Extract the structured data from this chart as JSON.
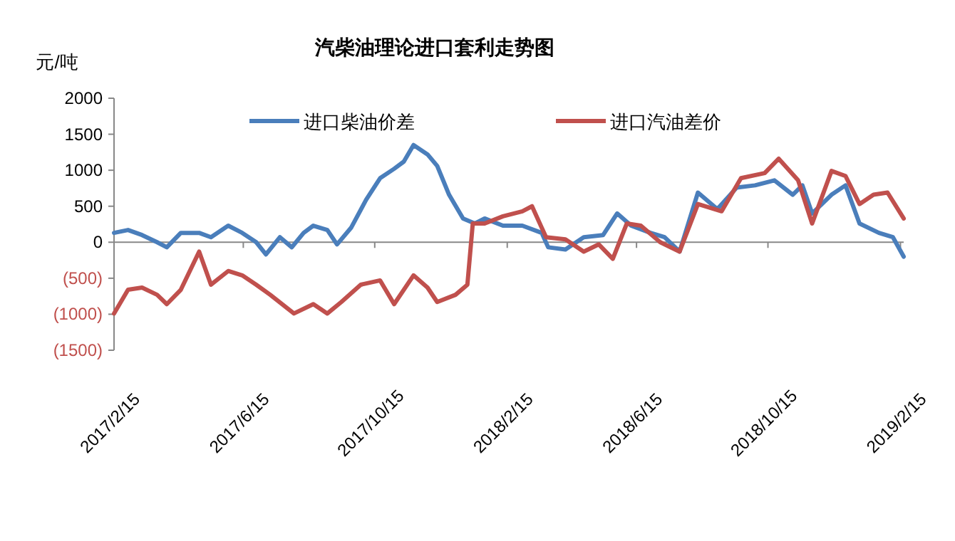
{
  "chart_data": {
    "type": "line",
    "title": "汽柴油理论进口套利走势图",
    "ylabel": "元/吨",
    "xlim": [
      "2017-02-15",
      "2019-02-18"
    ],
    "xticks": [
      {
        "value": "2017-02-15",
        "label": "2017/2/15"
      },
      {
        "value": "2017-06-15",
        "label": "2017/6/15"
      },
      {
        "value": "2017-10-15",
        "label": "2017/10/15"
      },
      {
        "value": "2018-02-15",
        "label": "2018/2/15"
      },
      {
        "value": "2018-06-15",
        "label": "2018/6/15"
      },
      {
        "value": "2018-10-15",
        "label": "2018/10/15"
      },
      {
        "value": "2019-02-15",
        "label": "2019/2/15"
      }
    ],
    "ylim": [
      -1500,
      2000
    ],
    "yticks": [
      {
        "value": -1500,
        "label": "(1500)"
      },
      {
        "value": -1000,
        "label": "(1000)"
      },
      {
        "value": -500,
        "label": "(500)"
      },
      0,
      500,
      1000,
      1500,
      2000
    ],
    "legend": "top",
    "marker": "none",
    "line_style": "solid",
    "series": [
      {
        "name": "进口柴油价差",
        "color": "#4a7ebb",
        "x": [
          "2017-02-15",
          "2017-02-28",
          "2017-03-13",
          "2017-03-27",
          "2017-04-05",
          "2017-04-18",
          "2017-05-05",
          "2017-05-16",
          "2017-06-01",
          "2017-06-14",
          "2017-06-27",
          "2017-07-06",
          "2017-07-19",
          "2017-07-30",
          "2017-08-10",
          "2017-08-19",
          "2017-09-01",
          "2017-09-10",
          "2017-09-23",
          "2017-10-07",
          "2017-10-20",
          "2017-11-02",
          "2017-11-11",
          "2017-11-20",
          "2017-12-03",
          "2017-12-12",
          "2017-12-23",
          "2018-01-05",
          "2018-01-16",
          "2018-01-25",
          "2018-02-11",
          "2018-03-01",
          "2018-03-19",
          "2018-03-25",
          "2018-04-10",
          "2018-04-27",
          "2018-05-15",
          "2018-05-28",
          "2018-06-10",
          "2018-06-28",
          "2018-07-11",
          "2018-07-25",
          "2018-08-11",
          "2018-08-29",
          "2018-09-16",
          "2018-10-03",
          "2018-10-21",
          "2018-11-07",
          "2018-11-16",
          "2018-11-25",
          "2018-12-13",
          "2018-12-26",
          "2019-01-08",
          "2019-01-26",
          "2019-02-08",
          "2019-02-18"
        ],
        "values": [
          130,
          170,
          100,
          0,
          -70,
          130,
          130,
          70,
          230,
          130,
          0,
          -170,
          70,
          -70,
          130,
          230,
          170,
          -30,
          200,
          590,
          890,
          1020,
          1120,
          1350,
          1220,
          1060,
          660,
          330,
          260,
          330,
          230,
          230,
          130,
          -70,
          -100,
          70,
          100,
          400,
          230,
          130,
          70,
          -130,
          690,
          460,
          760,
          790,
          860,
          660,
          790,
          400,
          660,
          790,
          260,
          130,
          70,
          -200
        ]
      },
      {
        "name": "进口汽油差价",
        "color": "#c0504d",
        "x": [
          "2017-02-15",
          "2017-02-28",
          "2017-03-13",
          "2017-03-27",
          "2017-04-05",
          "2017-04-18",
          "2017-05-05",
          "2017-05-16",
          "2017-06-01",
          "2017-06-14",
          "2017-06-27",
          "2017-07-10",
          "2017-08-01",
          "2017-08-19",
          "2017-09-01",
          "2017-09-14",
          "2017-10-02",
          "2017-10-20",
          "2017-11-02",
          "2017-11-20",
          "2017-12-03",
          "2017-12-12",
          "2017-12-29",
          "2018-01-09",
          "2018-01-14",
          "2018-01-20",
          "2018-01-25",
          "2018-02-11",
          "2018-03-01",
          "2018-03-10",
          "2018-03-23",
          "2018-04-10",
          "2018-04-27",
          "2018-05-11",
          "2018-05-24",
          "2018-06-06",
          "2018-06-19",
          "2018-07-07",
          "2018-07-25",
          "2018-08-11",
          "2018-09-02",
          "2018-09-20",
          "2018-10-12",
          "2018-10-25",
          "2018-11-12",
          "2018-11-25",
          "2018-12-13",
          "2018-12-26",
          "2019-01-08",
          "2019-01-21",
          "2019-02-03",
          "2019-02-18"
        ],
        "values": [
          -990,
          -660,
          -630,
          -730,
          -860,
          -660,
          -130,
          -590,
          -400,
          -460,
          -590,
          -730,
          -990,
          -860,
          -990,
          -830,
          -590,
          -530,
          -860,
          -460,
          -630,
          -830,
          -730,
          -590,
          260,
          260,
          260,
          360,
          430,
          500,
          70,
          40,
          -130,
          -30,
          -230,
          260,
          230,
          0,
          -130,
          530,
          430,
          890,
          960,
          1160,
          860,
          260,
          990,
          920,
          530,
          660,
          690,
          330
        ]
      }
    ]
  }
}
